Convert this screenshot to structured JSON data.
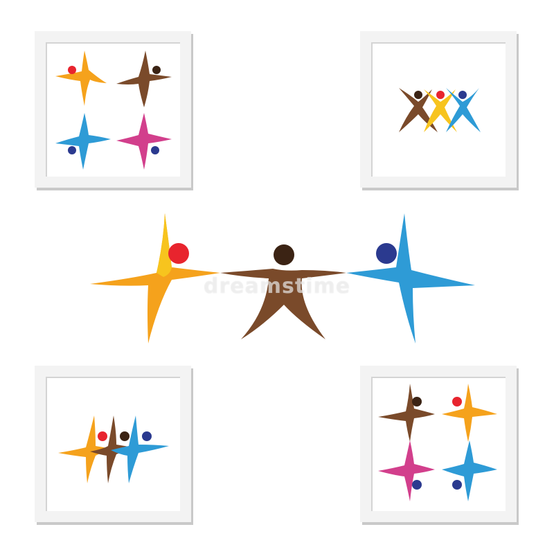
{
  "watermark": {
    "text": "dreamstime"
  },
  "colors": {
    "orange": "#f5a21c",
    "yellow": "#f7c41e",
    "brown": "#7a4a2a",
    "blue": "#2e9bd6",
    "magenta": "#d23f8c",
    "red": "#e8242e",
    "navy": "#2b3a8f",
    "dark_brown": "#3b2314",
    "frame": "#f3f3f3",
    "frame_shadow": "#c9c9c9"
  },
  "panels": [
    {
      "id": "frame-tl",
      "description_icon": "people-circle-four-icon"
    },
    {
      "id": "frame-tr",
      "description_icon": "people-trio-jumping-icon"
    },
    {
      "id": "frame-bl",
      "description_icon": "people-trio-row-icon"
    },
    {
      "id": "frame-br",
      "description_icon": "people-circle-four-icon"
    }
  ]
}
